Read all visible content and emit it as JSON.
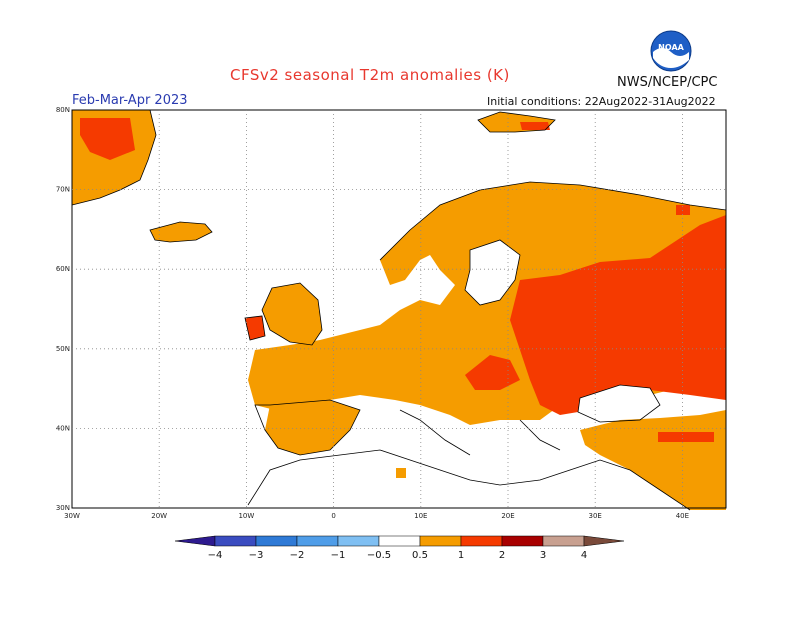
{
  "title": "CFSv2 seasonal T2m anomalies (K)",
  "agency": "NWS/NCEP/CPC",
  "logo_text": "NOAA",
  "period": "Feb-Mar-Apr 2023",
  "initial_conditions": "Initial conditions: 22Aug2022-31Aug2022",
  "map": {
    "lon_range": [
      -30,
      45
    ],
    "lat_range": [
      30,
      80
    ],
    "lat_ticks": [
      "30N",
      "40N",
      "50N",
      "60N",
      "70N",
      "80N"
    ],
    "lon_ticks": [
      "30W",
      "20W",
      "10W",
      "0",
      "10E",
      "20E",
      "30E",
      "40E"
    ],
    "grid": "dotted"
  },
  "colorbar": {
    "labels": [
      "−4",
      "−3",
      "−2",
      "−1",
      "−0.5",
      "0.5",
      "1",
      "2",
      "3",
      "4"
    ],
    "colors": [
      "#2d1a8f",
      "#3a4cc0",
      "#2f7ad6",
      "#4f9de8",
      "#7fbff2",
      "#ffffff",
      "#f59c00",
      "#f53a00",
      "#a80000",
      "#c8a090",
      "#7a4a3a"
    ]
  },
  "legend_colors": {
    "warm1": "#f59c00",
    "warm2": "#f53a00",
    "land_outline": "#000000"
  }
}
